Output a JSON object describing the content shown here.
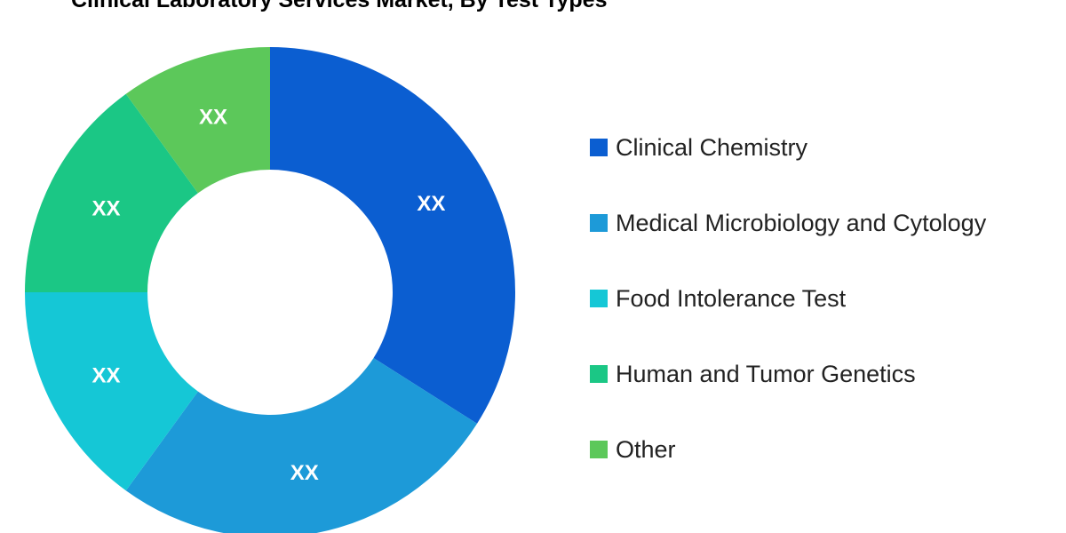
{
  "chart_data": {
    "type": "pie",
    "title": "Clinical Laboratory Services Market, By Test Types",
    "donut": true,
    "categories": [
      "Clinical Chemistry",
      "Medical Microbiology and Cytology",
      "Food Intolerance Test",
      "Human and Tumor Genetics",
      "Other"
    ],
    "values": [
      34,
      26,
      15,
      15,
      10
    ],
    "data_labels": [
      "XX",
      "XX",
      "XX",
      "XX",
      "XX"
    ],
    "colors": [
      "#0b5ed1",
      "#1d9ad8",
      "#15c7d6",
      "#1bc785",
      "#5cc85a"
    ],
    "start_angle_deg": 0,
    "direction": "clockwise",
    "legend_position": "right"
  }
}
